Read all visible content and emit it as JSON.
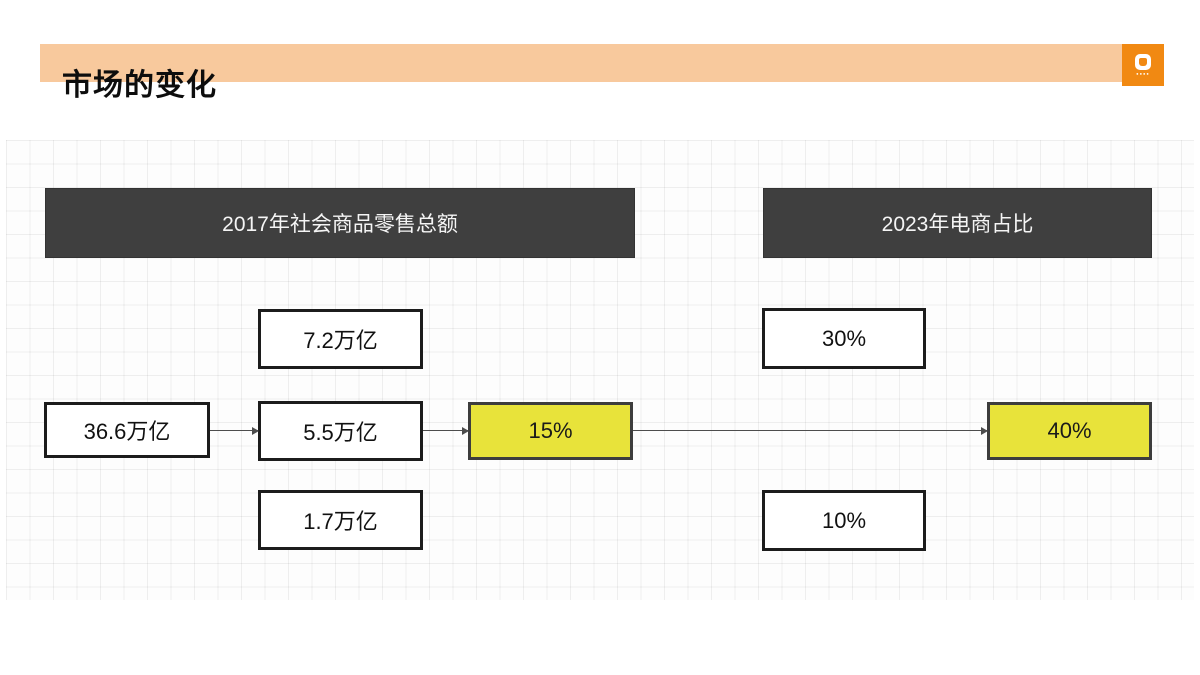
{
  "header": {
    "title": "市场的变化"
  },
  "logo": {
    "caption": "●●●●"
  },
  "diagram": {
    "left_header": "2017年社会商品零售总额",
    "right_header": "2023年电商占比",
    "total_box": "36.6万亿",
    "top_left_box": "7.2万亿",
    "mid_left_box": "5.5万亿",
    "bottom_left_box": "1.7万亿",
    "highlight_left": "15%",
    "top_right_box": "30%",
    "bottom_right_box": "10%",
    "highlight_right": "40%"
  },
  "colors": {
    "header_bar": "#F8C99D",
    "logo_orange": "#F18912",
    "dark_box": "#3F3F3F",
    "highlight_yellow": "#E8E33A",
    "box_border": "#1C1C1C",
    "connector": "#4D4D4D"
  }
}
